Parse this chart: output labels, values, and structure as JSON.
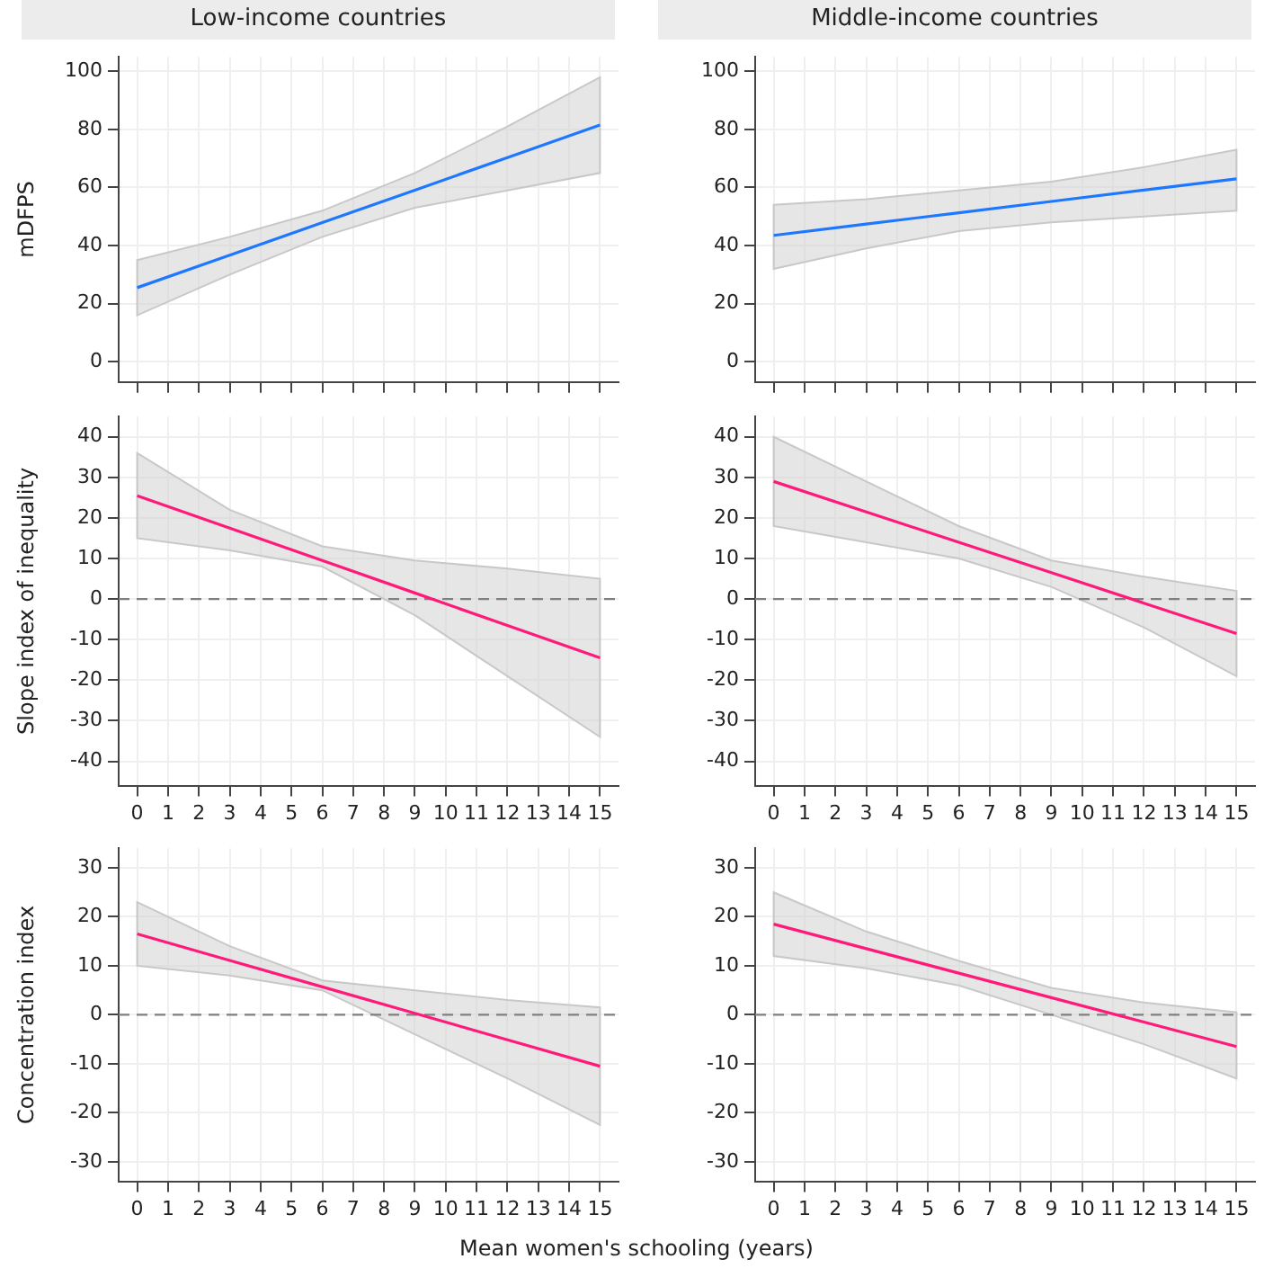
{
  "chart_data": [
    {
      "type": "line",
      "title": "Low-income countries",
      "ylabel": "mDFPS",
      "x": [
        0,
        3,
        6,
        9,
        12,
        15
      ],
      "series": [
        {
          "color": "#1e78ff",
          "values": [
            25.5,
            36.7,
            47.9,
            59.1,
            70.3,
            81.5
          ],
          "lower": [
            16,
            30,
            43,
            53,
            59,
            65
          ],
          "upper": [
            35,
            43,
            52,
            65,
            81,
            98
          ]
        }
      ],
      "xlim": [
        -0.6,
        15.6
      ],
      "xticks": [
        0,
        1,
        2,
        3,
        4,
        5,
        6,
        7,
        8,
        9,
        10,
        11,
        12,
        13,
        14,
        15
      ],
      "ylim": [
        -7,
        105
      ],
      "yticks": [
        0,
        20,
        40,
        60,
        80,
        100
      ],
      "grid": true,
      "tick_labels": "y"
    },
    {
      "type": "line",
      "title": "Middle-income countries",
      "x": [
        0,
        3,
        6,
        9,
        12,
        15
      ],
      "series": [
        {
          "color": "#1e78ff",
          "values": [
            43.5,
            47.4,
            51.3,
            55.2,
            59.1,
            63
          ],
          "lower": [
            32,
            39,
            45,
            48,
            50,
            52
          ],
          "upper": [
            54,
            56,
            59,
            62,
            67,
            73
          ]
        }
      ],
      "xlim": [
        -0.6,
        15.6
      ],
      "xticks": [
        0,
        1,
        2,
        3,
        4,
        5,
        6,
        7,
        8,
        9,
        10,
        11,
        12,
        13,
        14,
        15
      ],
      "ylim": [
        -7,
        105
      ],
      "yticks": [
        0,
        20,
        40,
        60,
        80,
        100
      ],
      "grid": true,
      "tick_labels": "y"
    },
    {
      "type": "line",
      "ylabel": "Slope index of inequality",
      "x": [
        0,
        3,
        6,
        9,
        12,
        15
      ],
      "series": [
        {
          "color": "#ff1a7a",
          "values": [
            25.5,
            17.5,
            9.5,
            1.5,
            -6.5,
            -14.5
          ],
          "lower": [
            15,
            12,
            8,
            -4,
            -19,
            -34
          ],
          "upper": [
            36,
            22,
            13,
            9.5,
            7.5,
            5
          ]
        }
      ],
      "xlim": [
        -0.6,
        15.6
      ],
      "xticks": [
        0,
        1,
        2,
        3,
        4,
        5,
        6,
        7,
        8,
        9,
        10,
        11,
        12,
        13,
        14,
        15
      ],
      "ylim": [
        -46,
        45
      ],
      "yticks": [
        -40,
        -30,
        -20,
        -10,
        0,
        10,
        20,
        30,
        40
      ],
      "grid": true,
      "ref_lines": [
        {
          "axis": "y",
          "value": 0,
          "color": "#808080",
          "line_style": "dashed"
        }
      ]
    },
    {
      "type": "line",
      "x": [
        0,
        3,
        6,
        9,
        12,
        15
      ],
      "series": [
        {
          "color": "#ff1a7a",
          "values": [
            29,
            21.5,
            14,
            6.5,
            -1,
            -8.5
          ],
          "lower": [
            18,
            14,
            10,
            3,
            -7,
            -19
          ],
          "upper": [
            40,
            29,
            18,
            9.5,
            5.5,
            2
          ]
        }
      ],
      "xlim": [
        -0.6,
        15.6
      ],
      "xticks": [
        0,
        1,
        2,
        3,
        4,
        5,
        6,
        7,
        8,
        9,
        10,
        11,
        12,
        13,
        14,
        15
      ],
      "ylim": [
        -46,
        45
      ],
      "yticks": [
        -40,
        -30,
        -20,
        -10,
        0,
        10,
        20,
        30,
        40
      ],
      "grid": true,
      "ref_lines": [
        {
          "axis": "y",
          "value": 0,
          "color": "#808080",
          "line_style": "dashed"
        }
      ]
    },
    {
      "type": "line",
      "ylabel": "Concentration index",
      "x": [
        0,
        3,
        6,
        9,
        12,
        15
      ],
      "series": [
        {
          "color": "#ff1a7a",
          "values": [
            16.5,
            11.1,
            5.7,
            0.3,
            -5.1,
            -10.5
          ],
          "lower": [
            10,
            8,
            5,
            -4,
            -13,
            -22.5
          ],
          "upper": [
            23,
            14,
            7,
            5,
            3,
            1.5
          ]
        }
      ],
      "xlim": [
        -0.6,
        15.6
      ],
      "xticks": [
        0,
        1,
        2,
        3,
        4,
        5,
        6,
        7,
        8,
        9,
        10,
        11,
        12,
        13,
        14,
        15
      ],
      "ylim": [
        -34,
        34
      ],
      "yticks": [
        -30,
        -20,
        -10,
        0,
        10,
        20,
        30
      ],
      "grid": true,
      "ref_lines": [
        {
          "axis": "y",
          "value": 0,
          "color": "#808080",
          "line_style": "dashed"
        }
      ]
    },
    {
      "type": "line",
      "xlabel": "Mean women's schooling (years)",
      "x": [
        0,
        3,
        6,
        9,
        12,
        15
      ],
      "series": [
        {
          "color": "#ff1a7a",
          "values": [
            18.5,
            13.5,
            8.5,
            3.5,
            -1.5,
            -6.5
          ],
          "lower": [
            12,
            9.5,
            6,
            0,
            -6,
            -13
          ],
          "upper": [
            25,
            17,
            11,
            5.5,
            2.5,
            0.5
          ]
        }
      ],
      "xlim": [
        -0.6,
        15.6
      ],
      "xticks": [
        0,
        1,
        2,
        3,
        4,
        5,
        6,
        7,
        8,
        9,
        10,
        11,
        12,
        13,
        14,
        15
      ],
      "ylim": [
        -34,
        34
      ],
      "yticks": [
        -30,
        -20,
        -10,
        0,
        10,
        20,
        30
      ],
      "grid": true,
      "ref_lines": [
        {
          "axis": "y",
          "value": 0,
          "color": "#808080",
          "line_style": "dashed"
        }
      ]
    }
  ]
}
